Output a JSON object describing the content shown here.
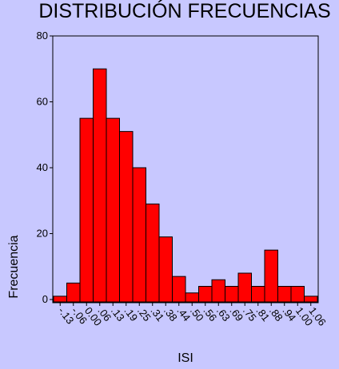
{
  "chart_data": {
    "type": "bar",
    "title": "DISTRIBUCIÓN FRECUENCIAS",
    "xlabel": "ISI",
    "ylabel": "Frecuencia",
    "ylim": [
      0,
      80
    ],
    "yticks": [
      0,
      20,
      40,
      60,
      80
    ],
    "categories": [
      "-.13",
      "-.06",
      "0.00",
      ".06",
      ".13",
      ".19",
      ".25",
      ".31",
      ".38",
      ".44",
      ".50",
      ".56",
      ".63",
      ".69",
      ".75",
      ".81",
      ".88",
      ".94",
      "1.00",
      "1.06"
    ],
    "values": [
      1,
      5,
      55,
      70,
      55,
      51,
      40,
      29,
      19,
      7,
      2,
      4,
      6,
      4,
      8,
      4,
      15,
      4,
      4,
      1
    ],
    "bar_color": "#ff0000",
    "grid": false
  }
}
